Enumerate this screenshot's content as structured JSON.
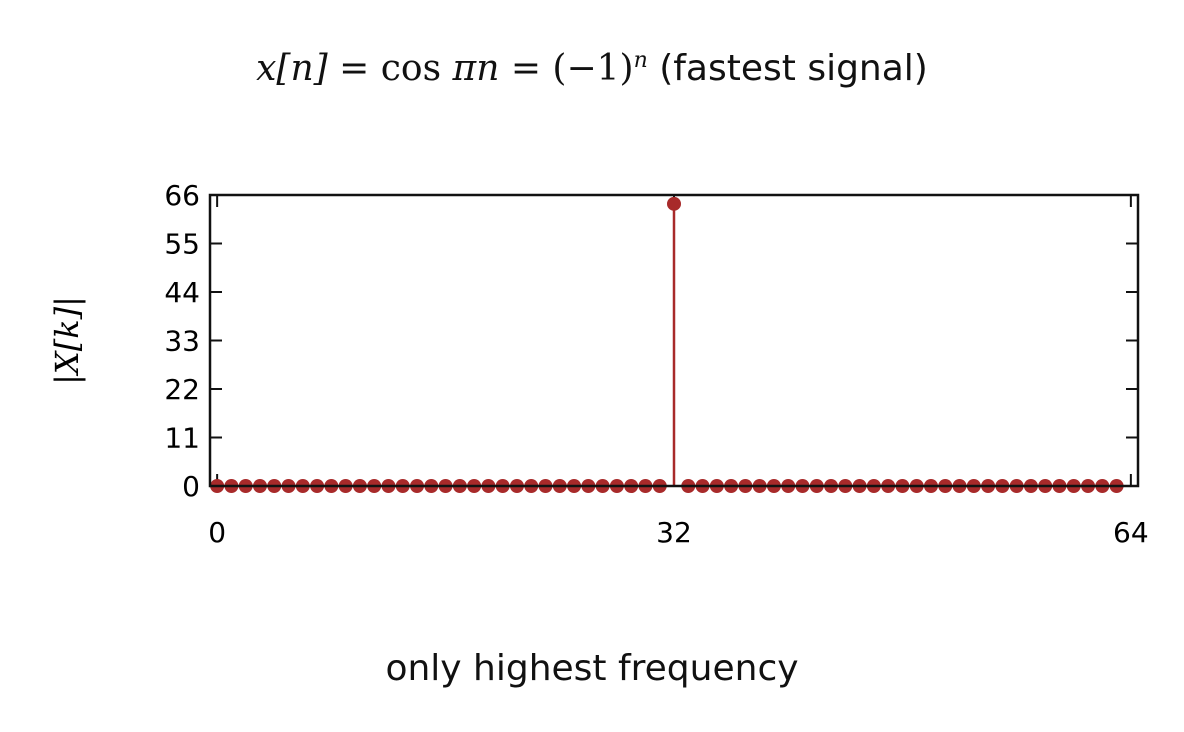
{
  "title": {
    "lhs": "x[n]",
    "eq1": " = cos ",
    "pi": "π",
    "n": "n",
    "eq2": " = (−1)",
    "exp": "n",
    "suffix": " (fastest signal)"
  },
  "caption": "only highest frequency",
  "colors": {
    "stem": "#a82a2a",
    "axis": "#111111"
  },
  "chart_data": {
    "type": "stem",
    "ylabel": "|X[k]|",
    "xlabel": "",
    "xlim": [
      -0.5,
      64.5
    ],
    "ylim": [
      0,
      66
    ],
    "xticks": [
      0,
      32,
      64
    ],
    "yticks": [
      0,
      11,
      22,
      33,
      44,
      55,
      66
    ],
    "x": [
      0,
      1,
      2,
      3,
      4,
      5,
      6,
      7,
      8,
      9,
      10,
      11,
      12,
      13,
      14,
      15,
      16,
      17,
      18,
      19,
      20,
      21,
      22,
      23,
      24,
      25,
      26,
      27,
      28,
      29,
      30,
      31,
      32,
      33,
      34,
      35,
      36,
      37,
      38,
      39,
      40,
      41,
      42,
      43,
      44,
      45,
      46,
      47,
      48,
      49,
      50,
      51,
      52,
      53,
      54,
      55,
      56,
      57,
      58,
      59,
      60,
      61,
      62,
      63
    ],
    "values": [
      0,
      0,
      0,
      0,
      0,
      0,
      0,
      0,
      0,
      0,
      0,
      0,
      0,
      0,
      0,
      0,
      0,
      0,
      0,
      0,
      0,
      0,
      0,
      0,
      0,
      0,
      0,
      0,
      0,
      0,
      0,
      0,
      64,
      0,
      0,
      0,
      0,
      0,
      0,
      0,
      0,
      0,
      0,
      0,
      0,
      0,
      0,
      0,
      0,
      0,
      0,
      0,
      0,
      0,
      0,
      0,
      0,
      0,
      0,
      0,
      0,
      0,
      0,
      0
    ]
  }
}
